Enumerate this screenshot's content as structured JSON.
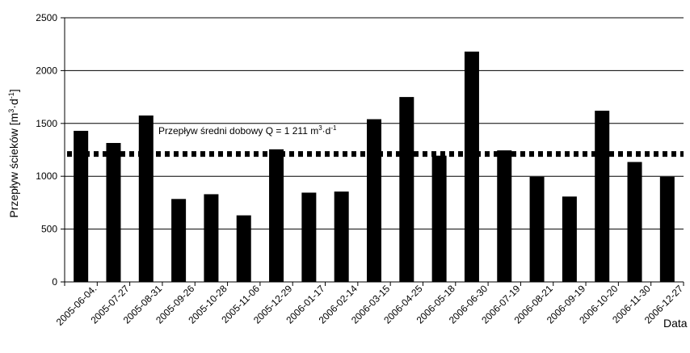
{
  "chart_data": {
    "type": "bar",
    "title": "",
    "xlabel": "Data",
    "ylabel_text": "Przepływ ścieków [m",
    "ylabel_unit_mid": "·d",
    "ylabel_end": "]",
    "ylabel_sup1": "3",
    "ylabel_sup2": "-1",
    "ylim": [
      0,
      2500
    ],
    "yticks": [
      0,
      500,
      1000,
      1500,
      2000,
      2500
    ],
    "ytick_labels": [
      "0",
      "500",
      "1000",
      "1500",
      "2000",
      "2500"
    ],
    "grid": true,
    "legend": "none",
    "bar_color": "#000000",
    "categories": [
      "2005-06-04.",
      "2005-07-27",
      "2005-08-31",
      "2005-09-26",
      "2005-10-28",
      "2005-11-06",
      "2005-12-29",
      "2006-01-17",
      "2006-02-14",
      "2006-03-15",
      "2006-04-25",
      "2006-05-18",
      "2006-06-30",
      "2006-07-19",
      "2006-08-21",
      "2006-09-19",
      "2006-10-20",
      "2006-11-30",
      "2006-12-27"
    ],
    "values": [
      1430,
      1315,
      1575,
      785,
      830,
      630,
      1255,
      845,
      855,
      1540,
      1750,
      1195,
      2180,
      1245,
      995,
      808,
      1620,
      1135,
      995
    ],
    "reference_line": {
      "value": 1211,
      "style": "dotted",
      "label_main": "Przepływ średni dobowy  Q = 1 211 m",
      "label_sup1": "3",
      "label_mid": "·d",
      "label_sup2": "-1"
    }
  }
}
